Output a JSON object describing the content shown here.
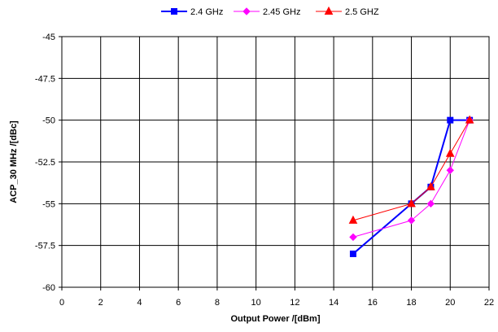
{
  "chart_data": {
    "type": "line",
    "xlabel": "Output Power /[dBm]",
    "ylabel": "ACP_30 MHz  /[dBc]",
    "xlim": [
      0,
      22
    ],
    "ylim": [
      -60,
      -45
    ],
    "xticks": [
      0,
      2,
      4,
      6,
      8,
      10,
      12,
      14,
      16,
      18,
      20,
      22
    ],
    "yticks": [
      -45,
      -47.5,
      -50,
      -52.5,
      -55,
      -57.5,
      -60
    ],
    "xtick_labels": [
      "0",
      "2",
      "4",
      "6",
      "8",
      "10",
      "12",
      "14",
      "16",
      "18",
      "20",
      "22"
    ],
    "ytick_labels": [
      "-45",
      "-47.5",
      "-50",
      "-52.5",
      "-55",
      "-57.5",
      "-60"
    ],
    "grid": true,
    "legend_position": "top-center",
    "series": [
      {
        "name": "2.4 GHz",
        "color": "#0000ff",
        "marker": "square",
        "x": [
          15,
          18,
          19,
          20,
          21
        ],
        "y": [
          -58,
          -55,
          -54,
          -50,
          -50
        ]
      },
      {
        "name": "2.45 GHz",
        "color": "#ff00ff",
        "marker": "diamond",
        "x": [
          15,
          18,
          19,
          20,
          21
        ],
        "y": [
          -57,
          -56,
          -55,
          -53,
          -50
        ]
      },
      {
        "name": "2.5 GHZ",
        "color": "#ff0000",
        "marker": "triangle",
        "x": [
          15,
          18,
          19,
          20,
          21
        ],
        "y": [
          -56,
          -55,
          -54,
          -52,
          -50
        ]
      }
    ]
  }
}
